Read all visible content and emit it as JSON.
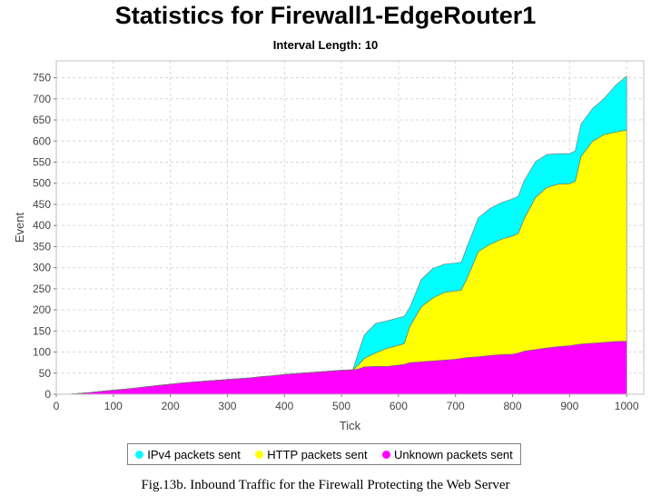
{
  "title": "Statistics for Firewall1-EdgeRouter1",
  "subtitle": "Interval Length: 10",
  "caption": "Fig.13b. Inbound Traffic for the Firewall Protecting the Web Server",
  "chart_data": {
    "type": "area",
    "stacked": true,
    "xlabel": "Tick",
    "ylabel": "Event",
    "xlim": [
      0,
      1030
    ],
    "ylim": [
      0,
      790
    ],
    "xticks": [
      0,
      100,
      200,
      300,
      400,
      500,
      600,
      700,
      800,
      900,
      1000
    ],
    "yticks": [
      0,
      50,
      100,
      150,
      200,
      250,
      300,
      350,
      400,
      450,
      500,
      550,
      600,
      650,
      700,
      750
    ],
    "grid": true,
    "legend_position": "bottom",
    "x": [
      0,
      20,
      40,
      60,
      80,
      100,
      120,
      140,
      160,
      180,
      200,
      220,
      240,
      260,
      280,
      300,
      320,
      340,
      360,
      380,
      400,
      420,
      440,
      460,
      480,
      500,
      520,
      530,
      540,
      560,
      580,
      600,
      610,
      620,
      640,
      660,
      680,
      700,
      710,
      720,
      740,
      760,
      780,
      800,
      810,
      820,
      840,
      860,
      880,
      900,
      910,
      920,
      940,
      960,
      980,
      1000
    ],
    "series": [
      {
        "name": "Unknown packets sent",
        "color": "#ff00ff",
        "values": [
          0,
          0,
          2,
          4,
          7,
          10,
          12,
          15,
          18,
          21,
          24,
          27,
          29,
          31,
          33,
          35,
          37,
          39,
          42,
          44,
          47,
          49,
          51,
          53,
          55,
          57,
          58,
          60,
          65,
          66,
          66,
          69,
          71,
          75,
          77,
          79,
          81,
          83,
          85,
          87,
          89,
          92,
          94,
          95,
          98,
          102,
          106,
          110,
          113,
          115,
          117,
          119,
          121,
          123,
          125,
          126
        ]
      },
      {
        "name": "HTTP packets sent",
        "color": "#ffff00",
        "values": [
          0,
          0,
          0,
          0,
          0,
          0,
          0,
          0,
          0,
          0,
          0,
          0,
          0,
          0,
          0,
          0,
          0,
          0,
          0,
          0,
          0,
          0,
          0,
          0,
          0,
          0,
          0,
          10,
          20,
          32,
          43,
          47,
          49,
          86,
          130,
          149,
          160,
          162,
          162,
          187,
          249,
          263,
          273,
          280,
          283,
          313,
          360,
          380,
          385,
          384,
          388,
          444,
          478,
          492,
          496,
          500
        ]
      },
      {
        "name": "IPv4 packets sent",
        "color": "#00ffff",
        "values": [
          0,
          0,
          0,
          0,
          0,
          0,
          0,
          0,
          0,
          0,
          0,
          0,
          0,
          0,
          0,
          0,
          0,
          0,
          0,
          0,
          0,
          0,
          0,
          0,
          0,
          0,
          0,
          30,
          55,
          70,
          65,
          65,
          65,
          45,
          65,
          70,
          67,
          66,
          66,
          75,
          80,
          85,
          87,
          88,
          88,
          90,
          85,
          78,
          72,
          71,
          72,
          77,
          78,
          85,
          110,
          128
        ]
      }
    ]
  },
  "legend": [
    {
      "label": "IPv4 packets sent",
      "color": "#00ffff"
    },
    {
      "label": "HTTP packets sent",
      "color": "#ffff00"
    },
    {
      "label": "Unknown packets sent",
      "color": "#ff00ff"
    }
  ]
}
